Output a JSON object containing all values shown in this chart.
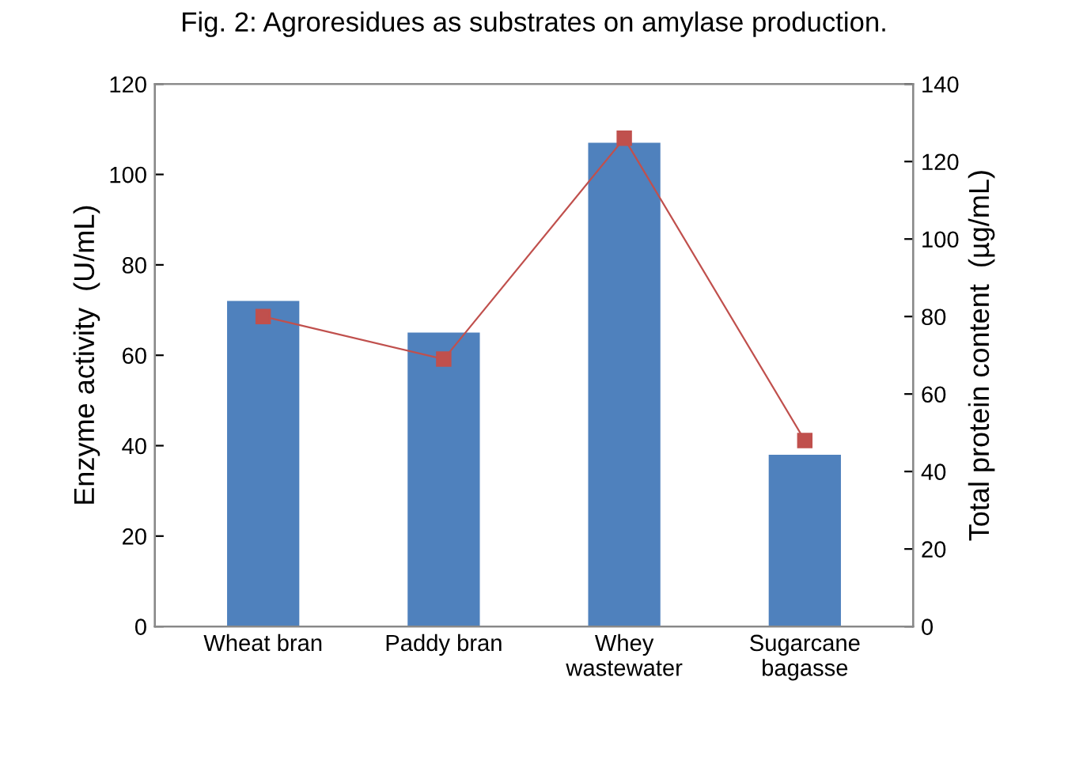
{
  "chart_data": {
    "type": "bar",
    "title": "Fig. 2: Agroresidues as substrates on amylase production.",
    "ylabel": "Enzyme activity  (U/mL)",
    "y2label": "Total protein content  (µg/mL)",
    "categories": [
      "Wheat bran",
      "Paddy bran",
      "Whey\nwastewater",
      "Sugarcane\nbagasse"
    ],
    "series": [
      {
        "color": "#4f81bd",
        "values": [
          72,
          65,
          107,
          38
        ]
      },
      {
        "type": "line",
        "axis": "y2",
        "color": "#c0504d",
        "marker": "square",
        "values": [
          80,
          69,
          126,
          48
        ]
      }
    ],
    "ylim": [
      0,
      120
    ],
    "yticks": [
      0,
      20,
      40,
      60,
      80,
      100,
      120
    ],
    "y2lim": [
      0,
      140
    ],
    "y2ticks": [
      0,
      20,
      40,
      60,
      80,
      100,
      120,
      140
    ],
    "grid": false,
    "legend": false
  }
}
